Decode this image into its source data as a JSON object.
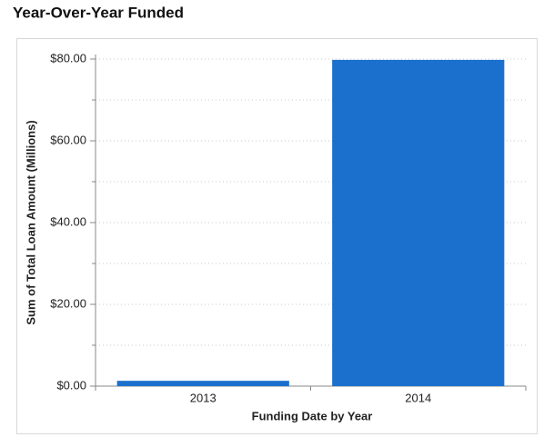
{
  "chart_data": {
    "type": "bar",
    "title": "Year-Over-Year Funded",
    "x_label": "Funding Date by Year",
    "y_label": "Sum of Total Loan Amount (Millions)",
    "categories": [
      "2013",
      "2014"
    ],
    "values": [
      1.3,
      79.8
    ],
    "color": "#1a70cc",
    "ylim": [
      0,
      80
    ],
    "yticks": [
      {
        "value": 0,
        "label": "$0.00"
      },
      {
        "value": 20,
        "label": "$20.00"
      },
      {
        "value": 40,
        "label": "$40.00"
      },
      {
        "value": 60,
        "label": "$60.00"
      },
      {
        "value": 80,
        "label": "$80.00"
      }
    ],
    "minor_yticks": [
      10,
      30,
      50,
      70
    ],
    "grid": true
  }
}
